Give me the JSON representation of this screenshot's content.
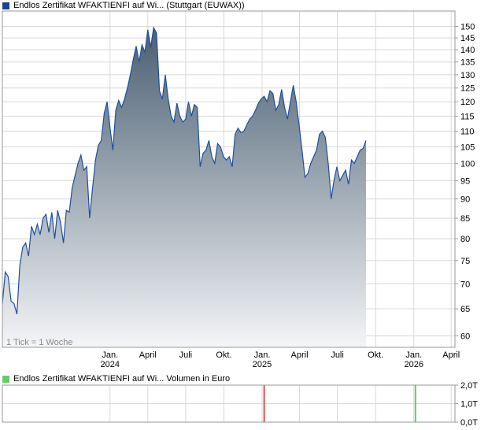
{
  "colors": {
    "line": "#1f4e9e",
    "fill_top": "#4a5f72",
    "fill_bottom": "#f4f5f7",
    "grid": "#d8d8d8",
    "frame": "#999999",
    "price_swatch": "#1f3f8f",
    "volume_swatch": "#66cc66",
    "volume_red": "#e05050",
    "volume_green": "#66cc66"
  },
  "legend": {
    "price": "Endlos Zertifikat WFAKTIENFI auf Wi... (Stuttgart (EUWAX))",
    "volume": "Endlos Zertifikat WFAKTIENFI auf Wi... Volumen in Euro"
  },
  "note": "1 Tick = 1 Woche",
  "chart_data": [
    {
      "type": "area",
      "scale": "log",
      "ylim": [
        58,
        157
      ],
      "y_ticks": [
        "150",
        "145",
        "140",
        "135",
        "130",
        "125",
        "120",
        "115",
        "110",
        "105",
        "100",
        "95",
        "90",
        "85",
        "80",
        "75",
        "70",
        "65",
        "60"
      ],
      "x_ticks": [
        {
          "label": "Jan.",
          "sub": "2024",
          "date": "2024-01-01"
        },
        {
          "label": "April",
          "sub": "",
          "date": "2024-04-01"
        },
        {
          "label": "Juli",
          "sub": "",
          "date": "2024-07-01"
        },
        {
          "label": "Okt.",
          "sub": "",
          "date": "2024-10-01"
        },
        {
          "label": "Jan.",
          "sub": "2025",
          "date": "2025-01-01"
        },
        {
          "label": "April",
          "sub": "",
          "date": "2025-04-01"
        },
        {
          "label": "Juli",
          "sub": "",
          "date": "2025-07-01"
        },
        {
          "label": "Okt.",
          "sub": "",
          "date": "2025-10-01"
        },
        {
          "label": "Jan.",
          "sub": "2026",
          "date": "2026-01-01"
        },
        {
          "label": "April",
          "sub": "",
          "date": "2026-04-01"
        }
      ],
      "xlim": [
        "2023-04-17",
        "2026-04-10"
      ],
      "series": [
        {
          "values": [
            [
              "2023-04-17",
              66
            ],
            [
              "2023-04-24",
              72.5
            ],
            [
              "2023-05-01",
              71.5
            ],
            [
              "2023-05-08",
              66.5
            ],
            [
              "2023-05-15",
              66
            ],
            [
              "2023-05-22",
              64
            ],
            [
              "2023-05-29",
              74
            ],
            [
              "2023-06-05",
              78
            ],
            [
              "2023-06-12",
              79
            ],
            [
              "2023-06-19",
              76
            ],
            [
              "2023-06-26",
              83
            ],
            [
              "2023-07-03",
              81
            ],
            [
              "2023-07-10",
              83.5
            ],
            [
              "2023-07-17",
              81
            ],
            [
              "2023-07-24",
              85
            ],
            [
              "2023-07-31",
              86
            ],
            [
              "2023-08-07",
              81.5
            ],
            [
              "2023-08-14",
              86.5
            ],
            [
              "2023-08-21",
              80
            ],
            [
              "2023-08-28",
              87
            ],
            [
              "2023-09-04",
              84
            ],
            [
              "2023-09-11",
              79
            ],
            [
              "2023-09-18",
              87
            ],
            [
              "2023-09-25",
              86.5
            ],
            [
              "2023-10-02",
              93
            ],
            [
              "2023-10-09",
              96.5
            ],
            [
              "2023-10-16",
              100
            ],
            [
              "2023-10-23",
              102.5
            ],
            [
              "2023-10-30",
              98
            ],
            [
              "2023-11-06",
              99
            ],
            [
              "2023-11-13",
              85
            ],
            [
              "2023-11-20",
              93
            ],
            [
              "2023-11-27",
              101
            ],
            [
              "2023-12-04",
              105.5
            ],
            [
              "2023-12-11",
              107
            ],
            [
              "2023-12-18",
              116
            ],
            [
              "2023-12-25",
              120
            ],
            [
              "2024-01-01",
              111
            ],
            [
              "2024-01-08",
              104
            ],
            [
              "2024-01-15",
              117
            ],
            [
              "2024-01-22",
              120.5
            ],
            [
              "2024-01-29",
              118
            ],
            [
              "2024-02-05",
              121
            ],
            [
              "2024-02-12",
              125
            ],
            [
              "2024-02-19",
              130
            ],
            [
              "2024-02-26",
              136
            ],
            [
              "2024-03-04",
              141.5
            ],
            [
              "2024-03-11",
              135
            ],
            [
              "2024-03-18",
              142
            ],
            [
              "2024-03-25",
              139
            ],
            [
              "2024-04-01",
              148.5
            ],
            [
              "2024-04-08",
              141
            ],
            [
              "2024-04-15",
              149.5
            ],
            [
              "2024-04-22",
              147
            ],
            [
              "2024-04-29",
              124
            ],
            [
              "2024-05-06",
              121
            ],
            [
              "2024-05-13",
              130
            ],
            [
              "2024-05-20",
              121
            ],
            [
              "2024-05-27",
              115
            ],
            [
              "2024-06-03",
              113
            ],
            [
              "2024-06-10",
              119.5
            ],
            [
              "2024-06-17",
              115
            ],
            [
              "2024-06-24",
              113
            ],
            [
              "2024-07-01",
              114
            ],
            [
              "2024-07-08",
              120
            ],
            [
              "2024-07-15",
              115
            ],
            [
              "2024-07-22",
              119
            ],
            [
              "2024-07-29",
              118
            ],
            [
              "2024-08-05",
              99
            ],
            [
              "2024-08-12",
              103
            ],
            [
              "2024-08-19",
              104
            ],
            [
              "2024-08-26",
              107
            ],
            [
              "2024-09-02",
              102
            ],
            [
              "2024-09-09",
              100
            ],
            [
              "2024-09-16",
              106
            ],
            [
              "2024-09-23",
              105
            ],
            [
              "2024-09-30",
              102
            ],
            [
              "2024-10-07",
              101
            ],
            [
              "2024-10-14",
              102
            ],
            [
              "2024-10-21",
              99
            ],
            [
              "2024-10-28",
              109
            ],
            [
              "2024-11-04",
              111
            ],
            [
              "2024-11-11",
              109.5
            ],
            [
              "2024-11-18",
              110
            ],
            [
              "2024-11-25",
              112
            ],
            [
              "2024-12-02",
              114
            ],
            [
              "2024-12-09",
              115
            ],
            [
              "2024-12-16",
              117
            ],
            [
              "2024-12-23",
              119.5
            ],
            [
              "2024-12-30",
              121
            ],
            [
              "2025-01-06",
              122
            ],
            [
              "2025-01-13",
              120
            ],
            [
              "2025-01-20",
              124
            ],
            [
              "2025-01-27",
              123
            ],
            [
              "2025-02-03",
              117
            ],
            [
              "2025-02-10",
              119
            ],
            [
              "2025-02-17",
              124.5
            ],
            [
              "2025-02-24",
              118
            ],
            [
              "2025-03-03",
              114
            ],
            [
              "2025-03-10",
              120
            ],
            [
              "2025-03-17",
              126
            ],
            [
              "2025-03-24",
              120
            ],
            [
              "2025-03-31",
              112
            ],
            [
              "2025-04-07",
              104
            ],
            [
              "2025-04-14",
              96
            ],
            [
              "2025-04-21",
              97
            ],
            [
              "2025-04-28",
              100
            ],
            [
              "2025-05-05",
              102
            ],
            [
              "2025-05-12",
              104
            ],
            [
              "2025-05-19",
              109
            ],
            [
              "2025-05-26",
              110
            ],
            [
              "2025-06-02",
              108
            ],
            [
              "2025-06-09",
              100
            ],
            [
              "2025-06-16",
              90
            ],
            [
              "2025-06-23",
              95
            ],
            [
              "2025-06-30",
              99
            ],
            [
              "2025-07-07",
              95
            ],
            [
              "2025-07-14",
              96.5
            ],
            [
              "2025-07-21",
              98
            ],
            [
              "2025-07-28",
              94
            ],
            [
              "2025-08-04",
              101
            ],
            [
              "2025-08-11",
              100
            ],
            [
              "2025-08-18",
              102
            ],
            [
              "2025-08-25",
              104
            ],
            [
              "2025-09-01",
              104.5
            ],
            [
              "2025-09-08",
              107
            ]
          ]
        }
      ]
    },
    {
      "type": "bar",
      "ylim": [
        0,
        2
      ],
      "y_ticks": [
        "2,0T",
        "1,0T",
        "0,0T"
      ],
      "series": [
        {
          "values": [
            [
              "2025-01-06",
              2.0
            ]
          ],
          "color": "red"
        },
        {
          "values": [
            [
              "2026-01-05",
              2.0
            ]
          ],
          "color": "green"
        }
      ]
    }
  ]
}
